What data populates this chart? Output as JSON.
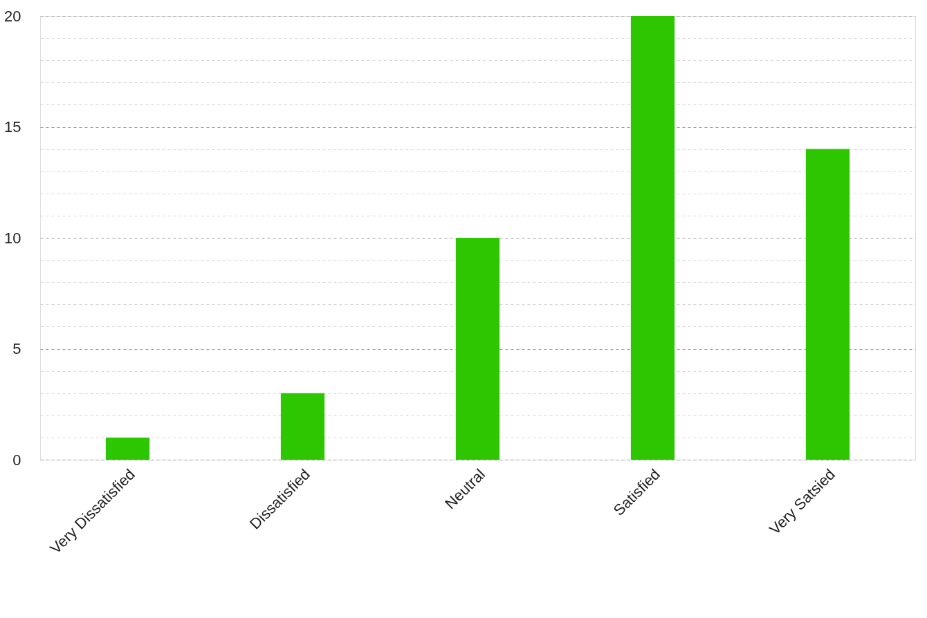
{
  "chart_data": {
    "type": "bar",
    "categories": [
      "Very Dissatisfied",
      "Dissatisfied",
      "Neutral",
      "Satisfied",
      "Very Satsied"
    ],
    "values": [
      1,
      3,
      10,
      20,
      14
    ],
    "color": "#2dc600",
    "ylim": [
      0,
      20
    ],
    "yticks": [
      0,
      {
        "value": 1,
        "label": null
      },
      {
        "value": 2,
        "label": null
      },
      {
        "value": 3,
        "label": null
      },
      {
        "value": 4,
        "label": null
      },
      5,
      {
        "value": 6,
        "label": null
      },
      {
        "value": 7,
        "label": null
      },
      {
        "value": 8,
        "label": null
      },
      {
        "value": 9,
        "label": null
      },
      10,
      {
        "value": 11,
        "label": null
      },
      {
        "value": 12,
        "label": null
      },
      {
        "value": 13,
        "label": null
      },
      {
        "value": 14,
        "label": null
      },
      15,
      {
        "value": 16,
        "label": null
      },
      {
        "value": 17,
        "label": null
      },
      {
        "value": 18,
        "label": null
      },
      {
        "value": 19,
        "label": null
      },
      20
    ],
    "grid": "y"
  }
}
